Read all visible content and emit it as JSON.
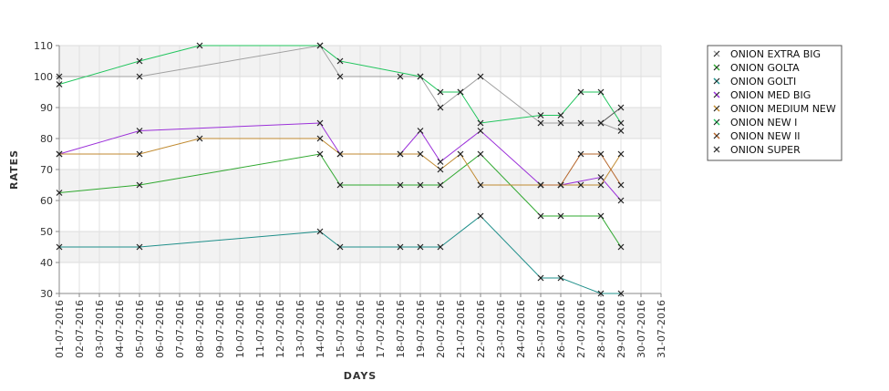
{
  "chart_data": {
    "type": "line",
    "xlabel": "DAYS",
    "ylabel": "RATES",
    "ylim": [
      30,
      110
    ],
    "yticks": [
      30,
      40,
      50,
      60,
      70,
      80,
      90,
      100,
      110
    ],
    "grid": true,
    "legend_position": "right",
    "x_tick_labels": [
      "01-07-2016",
      "02-07-2016",
      "03-07-2016",
      "04-07-2016",
      "05-07-2016",
      "06-07-2016",
      "07-07-2016",
      "08-07-2016",
      "09-07-2016",
      "10-07-2016",
      "11-07-2016",
      "12-07-2016",
      "13-07-2016",
      "14-07-2016",
      "15-07-2016",
      "16-07-2016",
      "17-07-2016",
      "18-07-2016",
      "19-07-2016",
      "20-07-2016",
      "21-07-2016",
      "22-07-2016",
      "23-07-2016",
      "24-07-2016",
      "25-07-2016",
      "26-07-2016",
      "27-07-2016",
      "28-07-2016",
      "29-07-2016",
      "30-07-2016",
      "31-07-2016"
    ],
    "series": [
      {
        "name": "ONION EXTRA BIG",
        "color": "#a0a0a0",
        "points": [
          [
            "01-07-2016",
            100
          ],
          [
            "05-07-2016",
            100
          ],
          [
            "14-07-2016",
            110
          ],
          [
            "15-07-2016",
            100
          ],
          [
            "18-07-2016",
            100
          ],
          [
            "19-07-2016",
            100
          ],
          [
            "20-07-2016",
            90
          ],
          [
            "21-07-2016",
            95
          ],
          [
            "22-07-2016",
            100
          ],
          [
            "25-07-2016",
            85
          ],
          [
            "26-07-2016",
            85
          ],
          [
            "27-07-2016",
            85
          ],
          [
            "28-07-2016",
            85
          ],
          [
            "29-07-2016",
            82.5
          ]
        ]
      },
      {
        "name": "ONION GOLTA",
        "color": "#2fa82f",
        "points": [
          [
            "01-07-2016",
            62.5
          ],
          [
            "05-07-2016",
            65
          ],
          [
            "14-07-2016",
            75
          ],
          [
            "15-07-2016",
            65
          ],
          [
            "18-07-2016",
            65
          ],
          [
            "19-07-2016",
            65
          ],
          [
            "20-07-2016",
            65
          ],
          [
            "22-07-2016",
            75
          ],
          [
            "25-07-2016",
            55
          ],
          [
            "26-07-2016",
            55
          ],
          [
            "28-07-2016",
            55
          ],
          [
            "29-07-2016",
            45
          ]
        ]
      },
      {
        "name": "ONION GOLTI",
        "color": "#1f8f8a",
        "points": [
          [
            "01-07-2016",
            45
          ],
          [
            "05-07-2016",
            45
          ],
          [
            "14-07-2016",
            50
          ],
          [
            "15-07-2016",
            45
          ],
          [
            "18-07-2016",
            45
          ],
          [
            "19-07-2016",
            45
          ],
          [
            "20-07-2016",
            45
          ],
          [
            "22-07-2016",
            55
          ],
          [
            "25-07-2016",
            35
          ],
          [
            "26-07-2016",
            35
          ],
          [
            "28-07-2016",
            30
          ],
          [
            "29-07-2016",
            30
          ]
        ]
      },
      {
        "name": "ONION MED BIG",
        "color": "#9b30d9",
        "points": [
          [
            "01-07-2016",
            75
          ],
          [
            "05-07-2016",
            82.5
          ],
          [
            "14-07-2016",
            85
          ],
          [
            "15-07-2016",
            75
          ],
          [
            "18-07-2016",
            75
          ],
          [
            "19-07-2016",
            82.5
          ],
          [
            "20-07-2016",
            72.5
          ],
          [
            "22-07-2016",
            82.5
          ],
          [
            "25-07-2016",
            65
          ],
          [
            "26-07-2016",
            65
          ],
          [
            "28-07-2016",
            67.5
          ],
          [
            "29-07-2016",
            60
          ]
        ]
      },
      {
        "name": "ONION MEDIUM NEW",
        "color": "#c08a30",
        "points": [
          [
            "01-07-2016",
            75
          ],
          [
            "05-07-2016",
            75
          ],
          [
            "08-07-2016",
            80
          ],
          [
            "14-07-2016",
            80
          ],
          [
            "15-07-2016",
            75
          ],
          [
            "18-07-2016",
            75
          ],
          [
            "19-07-2016",
            75
          ],
          [
            "20-07-2016",
            70
          ],
          [
            "21-07-2016",
            75
          ],
          [
            "22-07-2016",
            65
          ],
          [
            "25-07-2016",
            65
          ],
          [
            "26-07-2016",
            65
          ],
          [
            "27-07-2016",
            65
          ],
          [
            "28-07-2016",
            65
          ],
          [
            "29-07-2016",
            75
          ]
        ]
      },
      {
        "name": "ONION NEW I",
        "color": "#22c55e",
        "points": [
          [
            "01-07-2016",
            97.5
          ],
          [
            "05-07-2016",
            105
          ],
          [
            "08-07-2016",
            110
          ],
          [
            "14-07-2016",
            110
          ],
          [
            "15-07-2016",
            105
          ],
          [
            "19-07-2016",
            100
          ],
          [
            "20-07-2016",
            95
          ],
          [
            "21-07-2016",
            95
          ],
          [
            "22-07-2016",
            85
          ],
          [
            "25-07-2016",
            87.5
          ],
          [
            "26-07-2016",
            87.5
          ],
          [
            "27-07-2016",
            95
          ],
          [
            "28-07-2016",
            95
          ],
          [
            "29-07-2016",
            85
          ]
        ]
      },
      {
        "name": "ONION NEW II",
        "color": "#b5652a",
        "points": [
          [
            "25-07-2016",
            65
          ],
          [
            "26-07-2016",
            65
          ],
          [
            "27-07-2016",
            75
          ],
          [
            "28-07-2016",
            75
          ],
          [
            "29-07-2016",
            65
          ]
        ]
      },
      {
        "name": "ONION SUPER",
        "color": "#555555",
        "points": [
          [
            "28-07-2016",
            85
          ],
          [
            "29-07-2016",
            90
          ]
        ]
      }
    ]
  }
}
